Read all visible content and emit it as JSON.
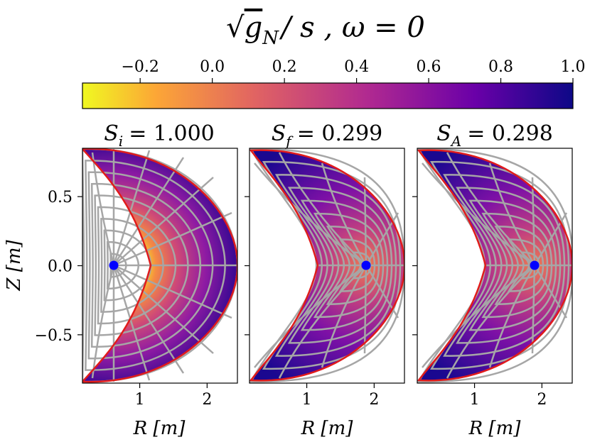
{
  "figure": {
    "suptitle": "√g_N / s , ω = 0",
    "suptitle_parts": {
      "sqrt": "√",
      "g": "g",
      "sub": "N",
      "rest": "/ s , ω = 0"
    }
  },
  "colorbar": {
    "colormap": "plasma_r",
    "range": [
      -0.36,
      1.0
    ],
    "ticks": [
      "−0.2",
      "0.0",
      "0.2",
      "0.4",
      "0.6",
      "0.8",
      "1.0"
    ],
    "tick_values": [
      -0.2,
      0.0,
      0.2,
      0.4,
      0.6,
      0.8,
      1.0
    ],
    "orientation": "horizontal"
  },
  "colors": {
    "boundary": "#e11b1b",
    "grid_lines": "#a9a9a9",
    "magnetic_axis": "#0000ff",
    "colormap_stops": [
      "#f0f921",
      "#fca636",
      "#e16462",
      "#b12a90",
      "#6a00a8",
      "#0d0887"
    ]
  },
  "chart_data": [
    {
      "type": "heatmap",
      "title_symbol": "S",
      "title_sub": "i",
      "title_value": "= 1.000",
      "xlabel": "R [m]",
      "ylabel": "Z [m]",
      "xlim": [
        0.15,
        2.45
      ],
      "ylim": [
        -0.85,
        0.85
      ],
      "xticks": [
        "1",
        "2"
      ],
      "xtick_values": [
        1,
        2
      ],
      "yticks": [
        "0.5",
        "0.0",
        "−0.5"
      ],
      "ytick_values": [
        0.5,
        0.0,
        -0.5
      ],
      "magnetic_axis": [
        0.6,
        0.0
      ],
      "boundary_outer_R": 2.4,
      "boundary_inner_R": 1.2,
      "boundary_tip_R": 0.15,
      "boundary_tip_Z": 0.8,
      "field_range": [
        -0.36,
        1.0
      ],
      "grid": "concentric flux surfaces clustered at inboard edge, radial lines from axis"
    },
    {
      "type": "heatmap",
      "title_symbol": "S",
      "title_sub": "f",
      "title_value": "= 0.299",
      "xlabel": "R [m]",
      "ylabel": "",
      "xlim": [
        0.15,
        2.45
      ],
      "ylim": [
        -0.85,
        0.85
      ],
      "xticks": [
        "1",
        "2"
      ],
      "xtick_values": [
        1,
        2
      ],
      "magnetic_axis": [
        1.85,
        0.0
      ],
      "field_range": [
        0.4,
        1.0
      ],
      "grid": "nested crescent flux surfaces around axis, radial lines"
    },
    {
      "type": "heatmap",
      "title_symbol": "S",
      "title_sub": "A",
      "title_value": "= 0.298",
      "xlabel": "R [m]",
      "ylabel": "",
      "xlim": [
        0.15,
        2.45
      ],
      "ylim": [
        -0.85,
        0.85
      ],
      "xticks": [
        "1",
        "2"
      ],
      "xtick_values": [
        1,
        2
      ],
      "magnetic_axis": [
        1.85,
        0.0
      ],
      "field_range": [
        0.4,
        1.0
      ],
      "grid": "nested crescent flux surfaces around axis, radial lines"
    }
  ]
}
